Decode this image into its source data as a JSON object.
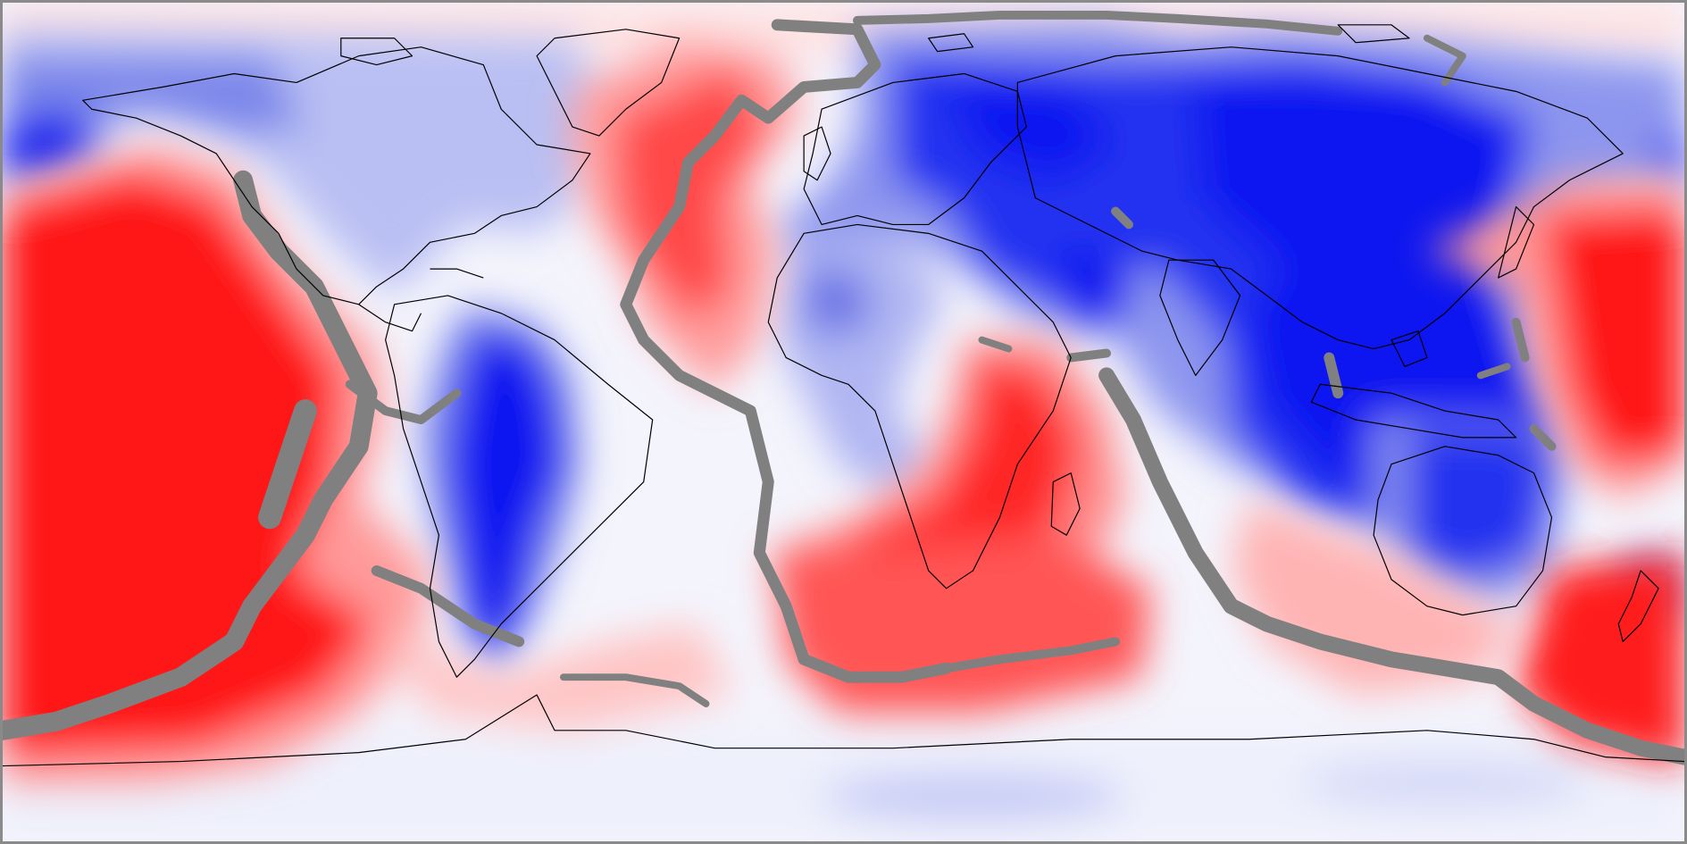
{
  "map": {
    "projection": "equirectangular",
    "longitude_range": [
      -180,
      180
    ],
    "latitude_range": [
      -90,
      90
    ],
    "colormap": {
      "positive": "#ff1010",
      "negative": "#0a14f0",
      "neutral": "#ffffff",
      "mask": "#808080",
      "coastline": "#000000"
    },
    "features": [
      "coastlines",
      "plate-boundary-mask",
      "positive-anomaly-fields",
      "negative-anomaly-fields"
    ]
  }
}
